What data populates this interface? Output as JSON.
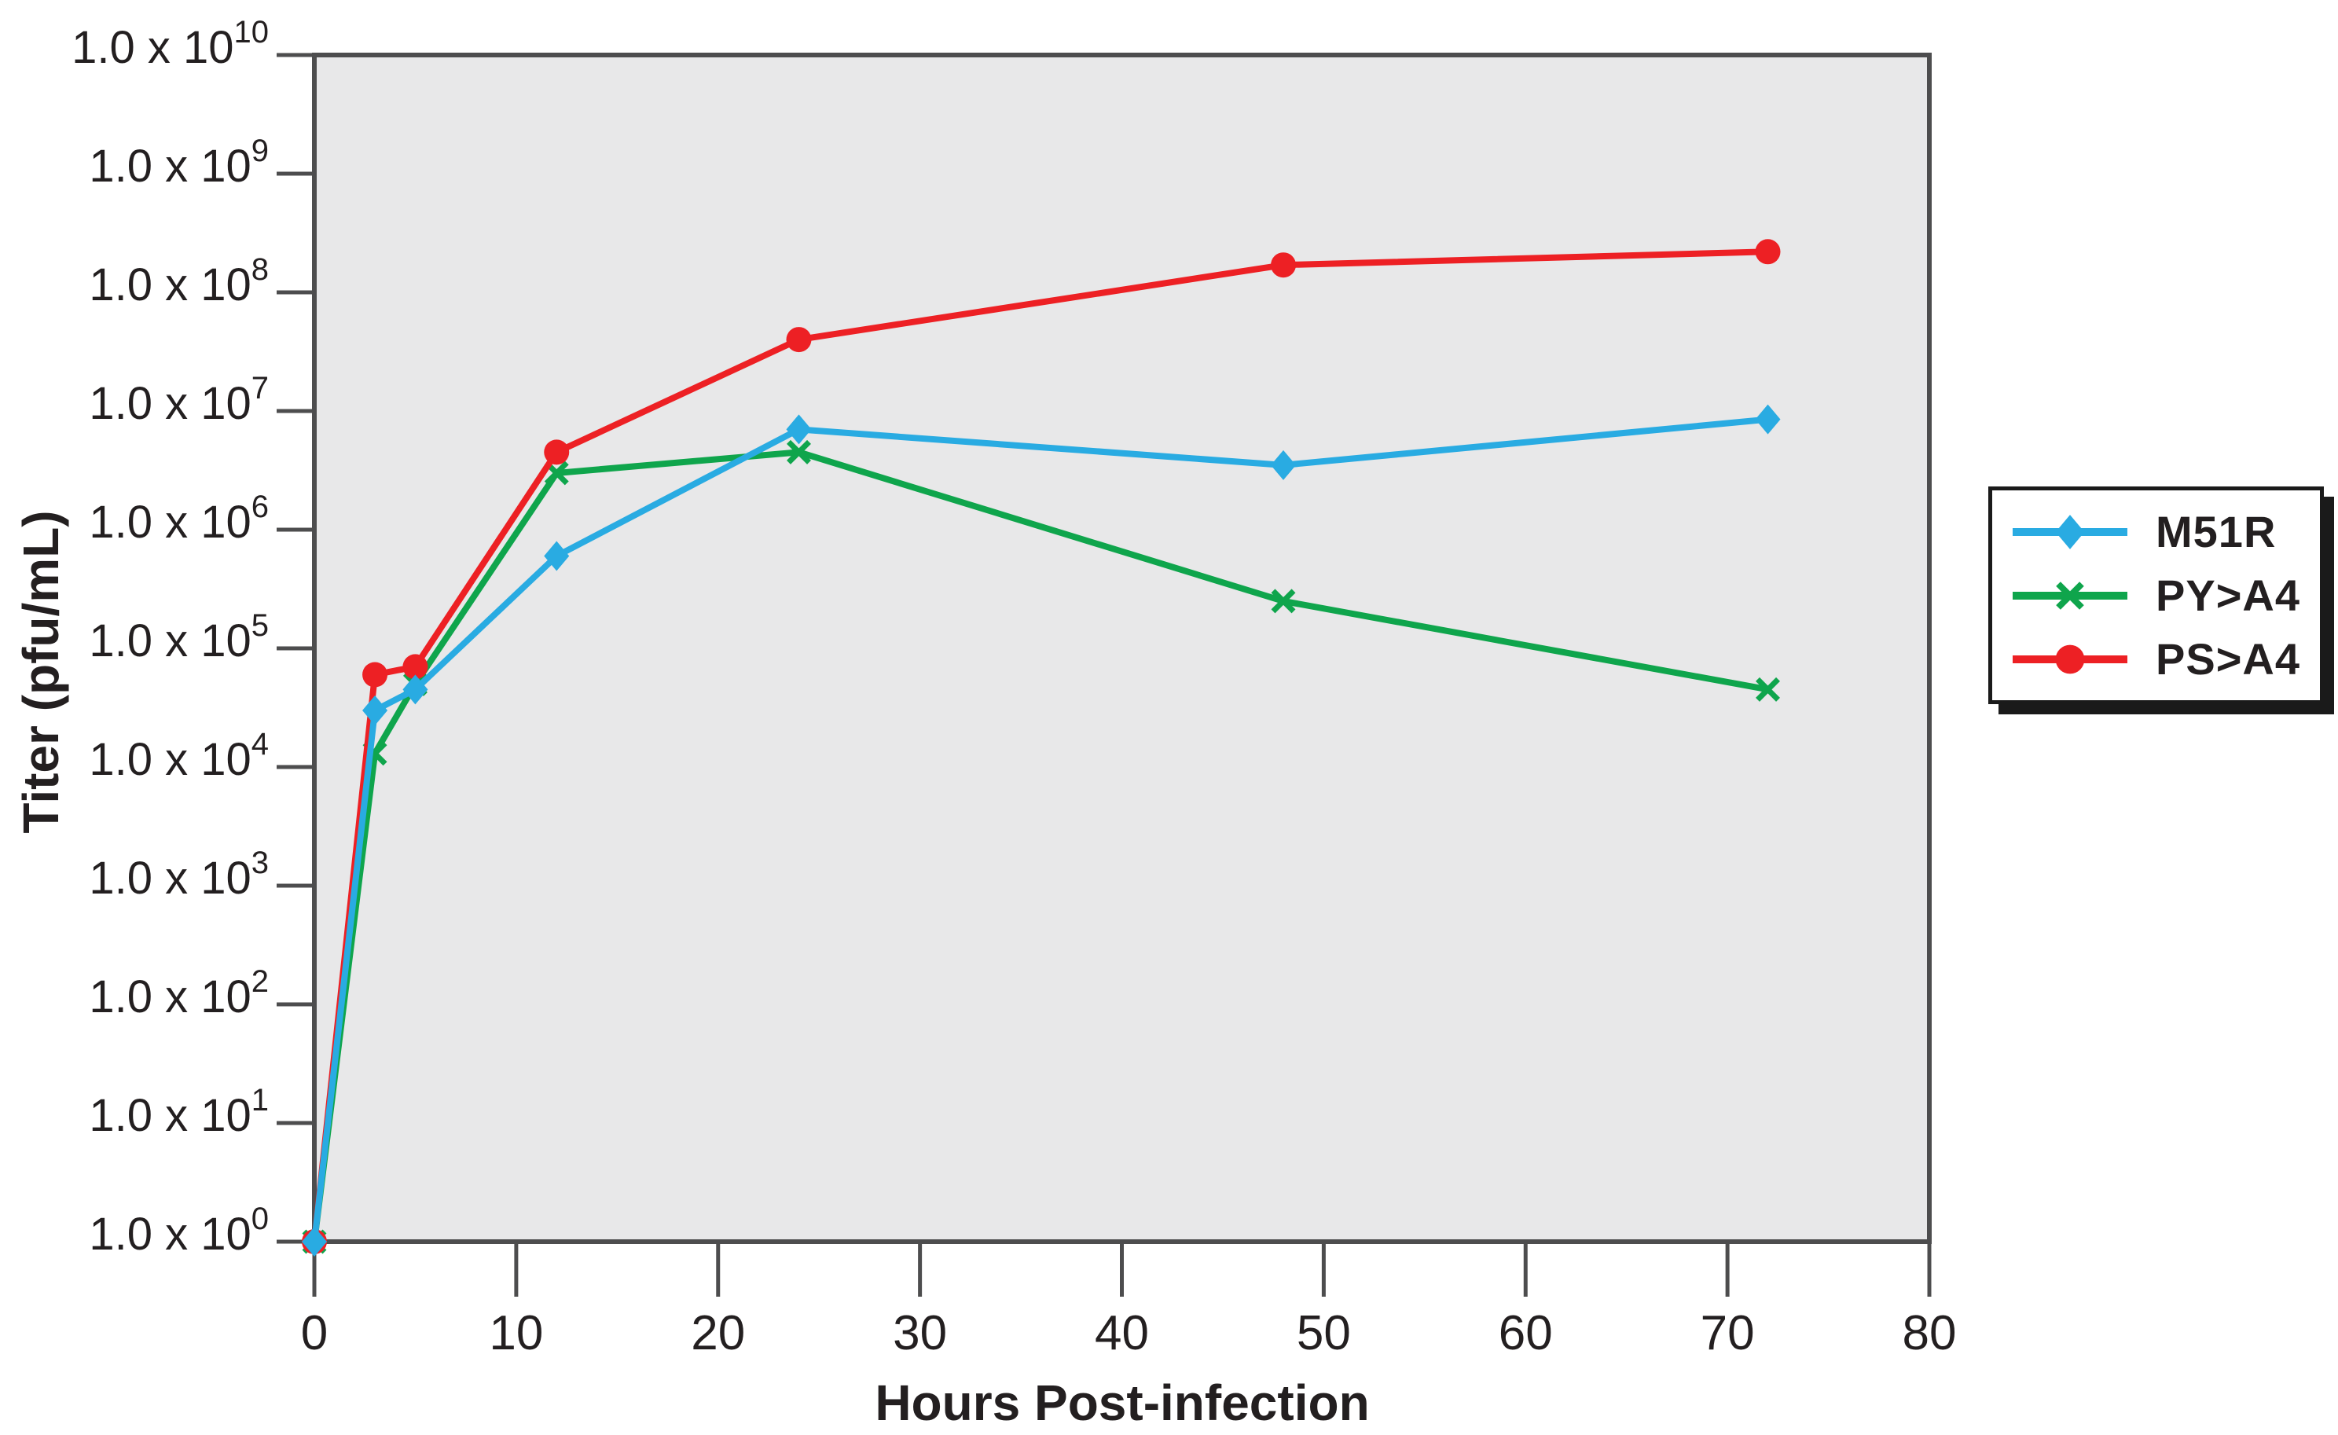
{
  "chart_data": {
    "type": "line",
    "title": "",
    "xlabel": "Hours Post-infection",
    "ylabel": "Titer (pfu/mL)",
    "grid": false,
    "x_axis": {
      "ticks": [
        0,
        10,
        20,
        30,
        40,
        50,
        60,
        70,
        80
      ],
      "range": [
        0,
        80
      ]
    },
    "y_axis": {
      "scale": "log",
      "tick_label_prefix": "1.0 x 10",
      "tick_exponents": [
        10,
        9,
        8,
        7,
        6,
        5,
        4,
        3,
        2,
        1,
        0
      ],
      "exponent_range": [
        0,
        10
      ]
    },
    "legend": {
      "position": "outside-right",
      "items": [
        "M51R",
        "PY>A4",
        "PS>A4"
      ]
    },
    "x": [
      0,
      3,
      5,
      12,
      24,
      48,
      72
    ],
    "series": [
      {
        "name": "M51R",
        "color": "#29ABE2",
        "marker": "diamond",
        "values": [
          1,
          30000,
          45000,
          600000,
          7000000,
          3500000,
          8500000
        ]
      },
      {
        "name": "PY>A4",
        "color": "#0FA54C",
        "marker": "x",
        "values": [
          1,
          13000,
          50000,
          3000000,
          4500000,
          250000,
          45000
        ]
      },
      {
        "name": "PS>A4",
        "color": "#ED2024",
        "marker": "circle",
        "values": [
          1,
          60000,
          70000,
          4500000,
          40000000,
          170000000,
          220000000
        ]
      }
    ]
  },
  "colors": {
    "plot_background": "#E8E8E9",
    "frame": "#4D4D4E",
    "tick": "#4D4D4E",
    "text": "#231F20",
    "legend_border": "#1A1A1A",
    "legend_shadow": "#1A1A1A",
    "page_background": "#FFFFFF"
  }
}
